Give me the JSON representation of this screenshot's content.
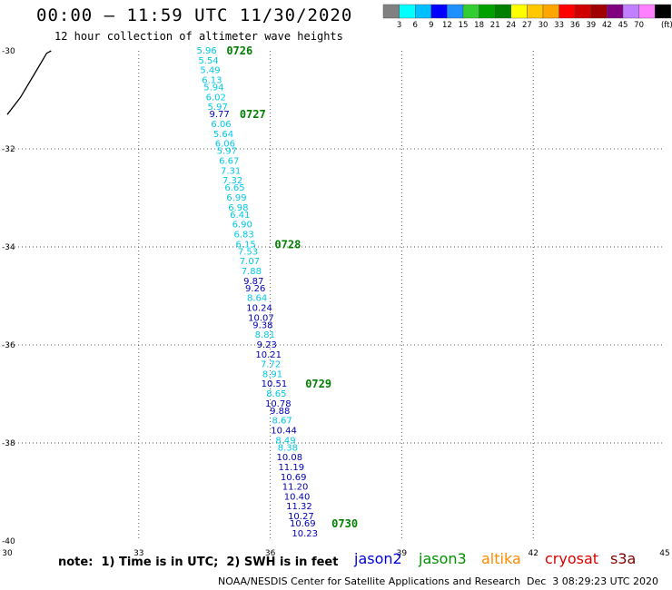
{
  "header": {
    "title": "00:00 – 11:59 UTC 11/30/2020",
    "subtitle": "12 hour collection of altimeter wave heights"
  },
  "colorbar": {
    "labels": [
      "3",
      "6",
      "9",
      "12",
      "15",
      "18",
      "21",
      "24",
      "27",
      "30",
      "33",
      "36",
      "39",
      "42",
      "45",
      "70"
    ],
    "unit": "(ft)",
    "colors": [
      "#808080",
      "#00ffff",
      "#00bfff",
      "#0000ff",
      "#1e90ff",
      "#32cd32",
      "#00a000",
      "#008000",
      "#ffff00",
      "#ffc800",
      "#ffa500",
      "#ff0000",
      "#d00000",
      "#a00000",
      "#800080",
      "#c080ff",
      "#ff80ff",
      "#000000"
    ]
  },
  "footer": {
    "note": "note:  1) Time is in UTC;  2) SWH is in feet",
    "credit": "NOAA/NESDIS Center for Satellite Applications and Research",
    "timestamp": "Dec  3 08:29:23 UTC 2020",
    "satellites": [
      {
        "name": "jason2",
        "color": "#0000dd"
      },
      {
        "name": "jason3",
        "color": "#009000"
      },
      {
        "name": "altika",
        "color": "#ff8c00"
      },
      {
        "name": "cryosat",
        "color": "#dd0000"
      },
      {
        "name": "s3a",
        "color": "#800000"
      }
    ]
  },
  "chart_data": {
    "type": "scatter",
    "xlim": [
      30,
      45
    ],
    "ylim": [
      -40,
      -30
    ],
    "x_ticks": [
      "30",
      "33",
      "36",
      "39",
      "42",
      "45"
    ],
    "y_ticks": [
      "-30",
      "-32",
      "-34",
      "-36",
      "-38",
      "-40"
    ],
    "grid": true,
    "colors": {
      "cyan": "#00c8e6",
      "blue": "#0000b4",
      "time": "#008000",
      "coast": "#000000"
    },
    "points": [
      {
        "lon": 34.55,
        "lat": -30.0,
        "v": "5.96",
        "c": "cyan"
      },
      {
        "lon": 34.59,
        "lat": -30.2,
        "v": "5.54",
        "c": "cyan"
      },
      {
        "lon": 34.63,
        "lat": -30.4,
        "v": "5.49",
        "c": "cyan"
      },
      {
        "lon": 34.67,
        "lat": -30.6,
        "v": "6.13",
        "c": "cyan"
      },
      {
        "lon": 34.71,
        "lat": -30.75,
        "v": "5.94",
        "c": "cyan"
      },
      {
        "lon": 34.76,
        "lat": -30.95,
        "v": "6.02",
        "c": "cyan"
      },
      {
        "lon": 34.8,
        "lat": -31.15,
        "v": "5.97",
        "c": "cyan"
      },
      {
        "lon": 34.84,
        "lat": -31.3,
        "v": "9.77",
        "c": "blue"
      },
      {
        "lon": 34.88,
        "lat": -31.5,
        "v": "6.06",
        "c": "cyan"
      },
      {
        "lon": 34.93,
        "lat": -31.7,
        "v": "5.64",
        "c": "cyan"
      },
      {
        "lon": 34.97,
        "lat": -31.9,
        "v": "6.06",
        "c": "cyan"
      },
      {
        "lon": 35.01,
        "lat": -32.05,
        "v": "5.97",
        "c": "cyan"
      },
      {
        "lon": 35.06,
        "lat": -32.25,
        "v": "6.67",
        "c": "cyan"
      },
      {
        "lon": 35.1,
        "lat": -32.45,
        "v": "7.31",
        "c": "cyan"
      },
      {
        "lon": 35.14,
        "lat": -32.65,
        "v": "7.32",
        "c": "cyan"
      },
      {
        "lon": 35.19,
        "lat": -32.8,
        "v": "6.65",
        "c": "cyan"
      },
      {
        "lon": 35.23,
        "lat": -33.0,
        "v": "6.99",
        "c": "cyan"
      },
      {
        "lon": 35.27,
        "lat": -33.2,
        "v": "6.98",
        "c": "cyan"
      },
      {
        "lon": 35.31,
        "lat": -33.35,
        "v": "6.41",
        "c": "cyan"
      },
      {
        "lon": 35.36,
        "lat": -33.55,
        "v": "6.90",
        "c": "cyan"
      },
      {
        "lon": 35.4,
        "lat": -33.75,
        "v": "6.83",
        "c": "cyan"
      },
      {
        "lon": 35.44,
        "lat": -33.95,
        "v": "6.15",
        "c": "cyan"
      },
      {
        "lon": 35.49,
        "lat": -34.1,
        "v": "7.53",
        "c": "cyan"
      },
      {
        "lon": 35.53,
        "lat": -34.3,
        "v": "7.07",
        "c": "cyan"
      },
      {
        "lon": 35.57,
        "lat": -34.5,
        "v": "7.88",
        "c": "cyan"
      },
      {
        "lon": 35.62,
        "lat": -34.7,
        "v": "9.87",
        "c": "blue"
      },
      {
        "lon": 35.66,
        "lat": -34.85,
        "v": "9.26",
        "c": "blue"
      },
      {
        "lon": 35.7,
        "lat": -35.05,
        "v": "8.64",
        "c": "cyan"
      },
      {
        "lon": 35.75,
        "lat": -35.25,
        "v": "10.24",
        "c": "blue"
      },
      {
        "lon": 35.79,
        "lat": -35.45,
        "v": "10.07",
        "c": "blue"
      },
      {
        "lon": 35.83,
        "lat": -35.6,
        "v": "9.38",
        "c": "blue"
      },
      {
        "lon": 35.88,
        "lat": -35.8,
        "v": "8.81",
        "c": "cyan"
      },
      {
        "lon": 35.92,
        "lat": -36.0,
        "v": "9.23",
        "c": "blue"
      },
      {
        "lon": 35.96,
        "lat": -36.2,
        "v": "10.21",
        "c": "blue"
      },
      {
        "lon": 36.01,
        "lat": -36.4,
        "v": "7.72",
        "c": "cyan"
      },
      {
        "lon": 36.05,
        "lat": -36.6,
        "v": "8.91",
        "c": "cyan"
      },
      {
        "lon": 36.09,
        "lat": -36.8,
        "v": "10.51",
        "c": "blue"
      },
      {
        "lon": 36.14,
        "lat": -37.0,
        "v": "8.65",
        "c": "cyan"
      },
      {
        "lon": 36.18,
        "lat": -37.2,
        "v": "10.78",
        "c": "blue"
      },
      {
        "lon": 36.22,
        "lat": -37.35,
        "v": "9.88",
        "c": "blue"
      },
      {
        "lon": 36.27,
        "lat": -37.55,
        "v": "8.67",
        "c": "cyan"
      },
      {
        "lon": 36.31,
        "lat": -37.75,
        "v": "10.44",
        "c": "blue"
      },
      {
        "lon": 36.35,
        "lat": -37.95,
        "v": "8.49",
        "c": "cyan"
      },
      {
        "lon": 36.4,
        "lat": -38.1,
        "v": "8.38",
        "c": "cyan"
      },
      {
        "lon": 36.44,
        "lat": -38.3,
        "v": "10.08",
        "c": "blue"
      },
      {
        "lon": 36.48,
        "lat": -38.5,
        "v": "11.19",
        "c": "blue"
      },
      {
        "lon": 36.53,
        "lat": -38.7,
        "v": "10.69",
        "c": "blue"
      },
      {
        "lon": 36.57,
        "lat": -38.9,
        "v": "11.20",
        "c": "blue"
      },
      {
        "lon": 36.61,
        "lat": -39.1,
        "v": "10.40",
        "c": "blue"
      },
      {
        "lon": 36.66,
        "lat": -39.3,
        "v": "11.32",
        "c": "blue"
      },
      {
        "lon": 36.7,
        "lat": -39.5,
        "v": "10.27",
        "c": "blue"
      },
      {
        "lon": 36.74,
        "lat": -39.65,
        "v": "10.69",
        "c": "blue"
      },
      {
        "lon": 36.79,
        "lat": -39.85,
        "v": "10.23",
        "c": "blue"
      }
    ],
    "time_labels": [
      {
        "lon": 35.0,
        "lat": -30.0,
        "t": "0726"
      },
      {
        "lon": 35.3,
        "lat": -31.3,
        "t": "0727"
      },
      {
        "lon": 36.1,
        "lat": -33.95,
        "t": "0728"
      },
      {
        "lon": 36.8,
        "lat": -36.8,
        "t": "0729"
      },
      {
        "lon": 37.4,
        "lat": -39.65,
        "t": "0730"
      }
    ],
    "coastline": [
      [
        30.0,
        -31.3
      ],
      [
        30.3,
        -30.95
      ],
      [
        30.6,
        -30.5
      ],
      [
        30.9,
        -30.05
      ],
      [
        31.0,
        -30.0
      ]
    ]
  }
}
